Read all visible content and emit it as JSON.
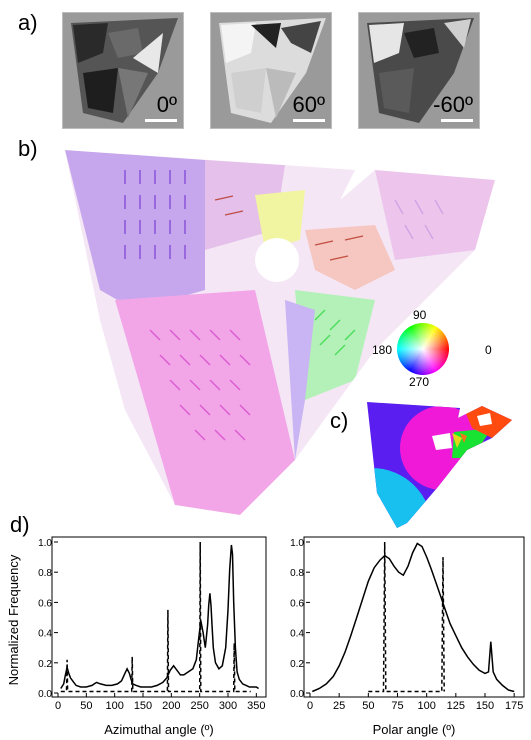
{
  "panels": {
    "a": "a)",
    "b": "b)",
    "c": "c)",
    "d": "d)"
  },
  "micrographs": [
    {
      "label": "0º"
    },
    {
      "label": "60º"
    },
    {
      "label": "-60º"
    }
  ],
  "color_wheel": {
    "top": "90",
    "right": "0",
    "bottom": "270",
    "left": "180"
  },
  "chart_data": [
    {
      "type": "line",
      "xlabel": "Azimuthal angle (º)",
      "ylabel": "Normalized Frequency",
      "xlim": [
        0,
        360
      ],
      "ylim": [
        0,
        1.0
      ],
      "xticks": [
        "0",
        "50",
        "100",
        "150",
        "200",
        "250",
        "300",
        "350"
      ],
      "yticks": [
        "0.0",
        "0.2",
        "0.4",
        "0.6",
        "0.8",
        "1.0"
      ],
      "series": [
        {
          "style": "solid",
          "x": [
            5,
            10,
            13,
            16,
            19,
            22,
            26,
            32,
            40,
            50,
            60,
            68,
            75,
            85,
            95,
            105,
            112,
            118,
            122,
            126,
            129,
            132,
            138,
            146,
            155,
            165,
            175,
            185,
            192,
            198,
            204,
            210,
            216,
            222,
            230,
            238,
            244,
            248,
            252,
            256,
            260,
            264,
            266,
            268,
            270,
            272,
            274,
            278,
            284,
            290,
            296,
            300,
            303,
            306,
            308,
            310,
            313,
            316,
            320,
            326,
            332,
            338,
            345,
            350,
            354
          ],
          "y": [
            0.03,
            0.06,
            0.12,
            0.17,
            0.13,
            0.1,
            0.08,
            0.05,
            0.04,
            0.04,
            0.05,
            0.07,
            0.06,
            0.05,
            0.05,
            0.06,
            0.08,
            0.13,
            0.16,
            0.13,
            0.09,
            0.06,
            0.05,
            0.04,
            0.04,
            0.04,
            0.05,
            0.07,
            0.1,
            0.15,
            0.18,
            0.15,
            0.12,
            0.12,
            0.14,
            0.16,
            0.22,
            0.35,
            0.48,
            0.4,
            0.3,
            0.45,
            0.58,
            0.66,
            0.58,
            0.44,
            0.3,
            0.2,
            0.16,
            0.18,
            0.3,
            0.55,
            0.82,
            0.98,
            0.92,
            0.6,
            0.3,
            0.14,
            0.09,
            0.06,
            0.05,
            0.04,
            0.04,
            0.04,
            0.03
          ]
        },
        {
          "style": "dashed",
          "x": [
            5,
            15,
            16,
            17,
            130,
            131,
            132,
            193,
            194,
            195,
            250,
            251,
            252,
            310,
            311,
            312,
            340
          ],
          "y": [
            0.01,
            0.01,
            0.22,
            0.01,
            0.01,
            0.24,
            0.01,
            0.01,
            0.55,
            0.01,
            0.01,
            1.0,
            0.01,
            0.01,
            0.33,
            0.01,
            0.01
          ]
        }
      ]
    },
    {
      "type": "line",
      "xlabel": "Polar angle (º)",
      "ylabel": "",
      "xlim": [
        0,
        180
      ],
      "ylim": [
        0,
        1.0
      ],
      "xticks": [
        "0",
        "25",
        "50",
        "75",
        "100",
        "125",
        "150",
        "175"
      ],
      "yticks": [
        "0.0",
        "0.2",
        "0.4",
        "0.6",
        "0.8",
        "1.0"
      ],
      "series": [
        {
          "style": "solid",
          "x": [
            2,
            8,
            14,
            20,
            25,
            30,
            35,
            40,
            45,
            50,
            55,
            60,
            64,
            68,
            72,
            76,
            80,
            84,
            88,
            92,
            96,
            100,
            104,
            108,
            112,
            116,
            120,
            125,
            130,
            135,
            140,
            145,
            150,
            153,
            155,
            157,
            160,
            165,
            170,
            175
          ],
          "y": [
            0.01,
            0.03,
            0.06,
            0.11,
            0.18,
            0.27,
            0.38,
            0.5,
            0.62,
            0.74,
            0.83,
            0.88,
            0.91,
            0.89,
            0.84,
            0.8,
            0.78,
            0.84,
            0.93,
            0.99,
            0.97,
            0.9,
            0.82,
            0.73,
            0.64,
            0.55,
            0.46,
            0.38,
            0.3,
            0.24,
            0.19,
            0.15,
            0.13,
            0.14,
            0.34,
            0.14,
            0.09,
            0.05,
            0.02,
            0.01
          ]
        },
        {
          "style": "dashed",
          "x": [
            50,
            63,
            64,
            65,
            113,
            114,
            115
          ],
          "y": [
            0.01,
            0.01,
            1.0,
            0.01,
            0.01,
            0.9,
            0.01
          ]
        }
      ]
    }
  ]
}
